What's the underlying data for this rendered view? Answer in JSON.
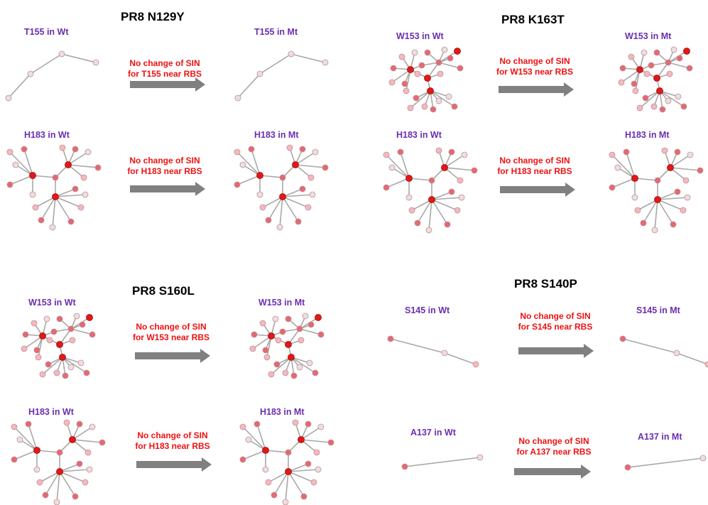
{
  "colors": {
    "label": "#6a2fb0",
    "note": "#ee1111",
    "arrow": "#808080",
    "edge": "#a8a8a8",
    "node_dark": "#dd1a1a",
    "node_mid": "#e26a72",
    "node_light": "#f2b9c0",
    "node_pale": "#e8e0e2"
  },
  "panels": [
    {
      "title": "PR8 N129Y",
      "rows": [
        {
          "left_label": "T155 in Wt",
          "note_line1": "No change of SIN",
          "note_line2": "for T155 near RBS",
          "right_label": "T155 in Mt",
          "network": "chain4"
        },
        {
          "left_label": "H183 in Wt",
          "note_line1": "No change of SIN",
          "note_line2": "for H183 near RBS",
          "right_label": "H183 in Mt",
          "network": "star"
        }
      ]
    },
    {
      "title": "PR8 K163T",
      "rows": [
        {
          "left_label": "W153 in Wt",
          "note_line1": "No change of SIN",
          "note_line2": "for W153 near RBS",
          "right_label": "W153 in Mt",
          "network": "cluster"
        },
        {
          "left_label": "H183 in Wt",
          "note_line1": "No change of SIN",
          "note_line2": "for H183 near RBS",
          "right_label": "H183 in Mt",
          "network": "star"
        }
      ]
    },
    {
      "title": "PR8 S160L",
      "rows": [
        {
          "left_label": "W153 in Wt",
          "note_line1": "No change of SIN",
          "note_line2": "for W153 near RBS",
          "right_label": "W153 in Mt",
          "network": "cluster"
        },
        {
          "left_label": "H183 in Wt",
          "note_line1": "No change of SIN",
          "note_line2": "for H183 near RBS",
          "right_label": "H183 in Mt",
          "network": "star"
        }
      ]
    },
    {
      "title": "PR8 S140P",
      "rows": [
        {
          "left_label": "S145 in Wt",
          "note_line1": "No change of SIN",
          "note_line2": "for S145 near RBS",
          "right_label": "S145 in Mt",
          "network": "chain3"
        },
        {
          "left_label": "A137 in Wt",
          "note_line1": "No change of SIN",
          "note_line2": "for A137 near RBS",
          "right_label": "A137 in Mt",
          "network": "chain2"
        }
      ]
    }
  ]
}
